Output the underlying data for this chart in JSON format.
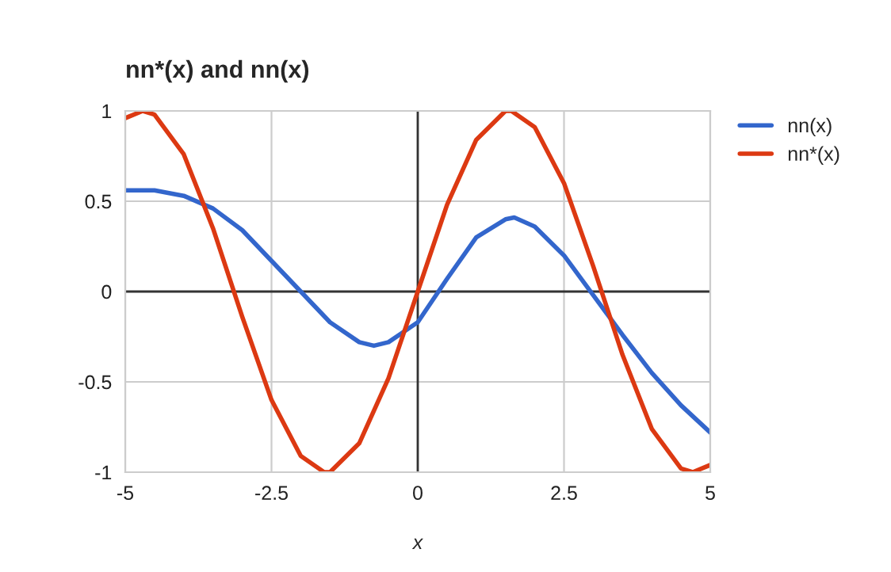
{
  "chart_data": {
    "type": "line",
    "title": "nn*(x) and nn(x)",
    "xlabel": "x",
    "xlim": [
      -5,
      5
    ],
    "xticks": [
      -5,
      -2.5,
      0,
      2.5,
      5
    ],
    "ylim": [
      -1,
      1
    ],
    "yticks": [
      -1,
      -0.5,
      0,
      0.5,
      1
    ],
    "grid": true,
    "legend": "right",
    "line_style": "solid",
    "marker": "none",
    "series": [
      {
        "name": "nn(x)",
        "color": "#3366cc",
        "x": [
          -5,
          -4.5,
          -4,
          -3.5,
          -3,
          -2.5,
          -2,
          -1.5,
          -1,
          -0.75,
          -0.5,
          0,
          0.5,
          1,
          1.5,
          1.65,
          2,
          2.5,
          3,
          3.5,
          4,
          4.5,
          5
        ],
        "values": [
          0.56,
          0.56,
          0.53,
          0.46,
          0.34,
          0.17,
          0.0,
          -0.17,
          -0.28,
          -0.3,
          -0.28,
          -0.17,
          0.07,
          0.3,
          0.4,
          0.41,
          0.36,
          0.2,
          -0.02,
          -0.24,
          -0.45,
          -0.63,
          -0.78
        ]
      },
      {
        "name": "nn*(x)",
        "color": "#dc3912",
        "x": [
          -5,
          -4.7,
          -4.5,
          -4,
          -3.5,
          -3,
          -2.5,
          -2,
          -1.6,
          -1.5,
          -1,
          -0.5,
          0,
          0.5,
          1,
          1.5,
          1.6,
          2,
          2.5,
          3,
          3.5,
          4,
          4.5,
          4.7,
          5
        ],
        "values": [
          0.96,
          1.0,
          0.98,
          0.76,
          0.35,
          -0.14,
          -0.6,
          -0.91,
          -1.0,
          -1.0,
          -0.84,
          -0.48,
          0,
          0.48,
          0.84,
          1.0,
          1.0,
          0.91,
          0.6,
          0.14,
          -0.35,
          -0.76,
          -0.98,
          -1.0,
          -0.96
        ]
      }
    ]
  }
}
